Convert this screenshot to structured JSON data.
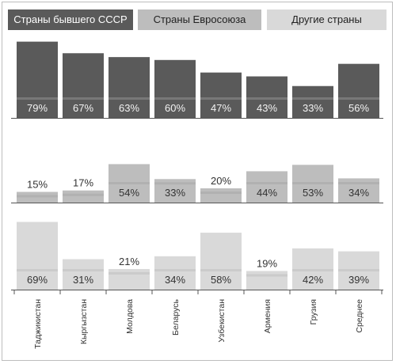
{
  "chart_data": {
    "type": "bar",
    "title": "",
    "layout": "three stacked panels sharing one category axis",
    "categories": [
      "Таджикистан",
      "Кыргызстан",
      "Молдова",
      "Беларусь",
      "Узбекистан",
      "Армения",
      "Грузия",
      "Среднее"
    ],
    "legend": [
      "Страны бывшего СССР",
      "Страны Евросоюза",
      "Другие страны"
    ],
    "legend_placement": "top",
    "grid": false,
    "ylim": [
      0,
      100
    ],
    "series": [
      {
        "name": "Страны бывшего СССР",
        "color": "#5a5a5a",
        "text_color": "#f2f2f2",
        "values": [
          79,
          67,
          63,
          60,
          47,
          43,
          33,
          56
        ]
      },
      {
        "name": "Страны Евросоюза",
        "color": "#bdbdbd",
        "text_color": "#333333",
        "values": [
          15,
          17,
          54,
          33,
          20,
          44,
          53,
          34
        ]
      },
      {
        "name": "Другие страны",
        "color": "#d9d9d9",
        "text_color": "#333333",
        "values": [
          69,
          31,
          21,
          34,
          58,
          19,
          42,
          39
        ]
      }
    ]
  }
}
